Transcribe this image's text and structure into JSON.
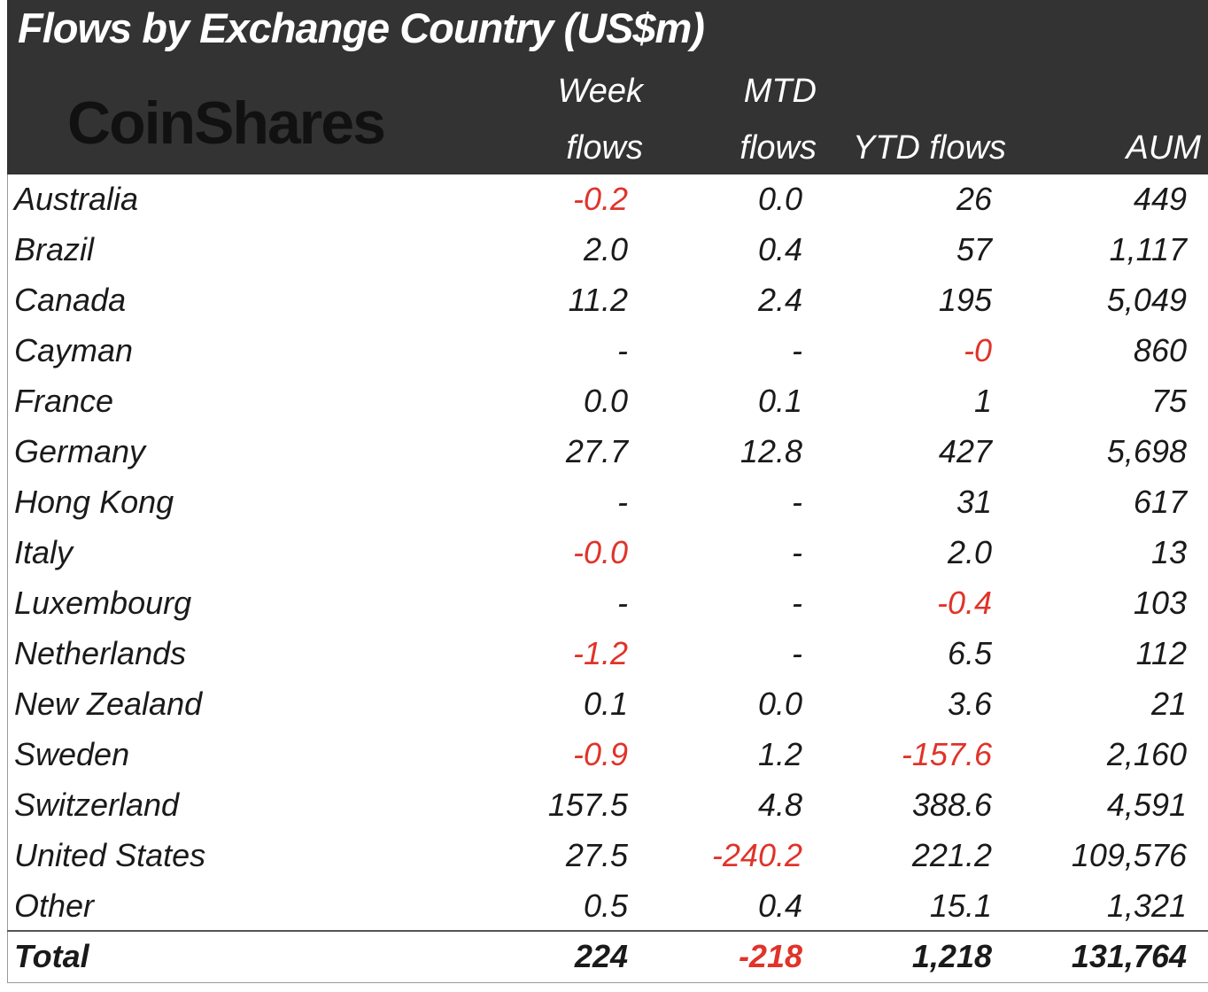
{
  "title": "Flows by Exchange Country (US$m)",
  "logo": "CoinShares",
  "colors": {
    "header_bg": "#333333",
    "negative": "#e0332a"
  },
  "chart_data": {
    "type": "table",
    "title": "Flows by Exchange Country (US$m)",
    "columns": [
      {
        "line1": "Week",
        "line2": "flows"
      },
      {
        "line1": "MTD",
        "line2": "flows"
      },
      {
        "line1": "",
        "line2": "YTD flows"
      },
      {
        "line1": "",
        "line2": "AUM"
      }
    ],
    "rows": [
      {
        "name": "Australia",
        "values": [
          "-0.2",
          "0.0",
          "26",
          "449"
        ]
      },
      {
        "name": "Brazil",
        "values": [
          "2.0",
          "0.4",
          "57",
          "1,117"
        ]
      },
      {
        "name": "Canada",
        "values": [
          "11.2",
          "2.4",
          "195",
          "5,049"
        ]
      },
      {
        "name": "Cayman",
        "values": [
          "-",
          "-",
          "-0",
          "860"
        ]
      },
      {
        "name": "France",
        "values": [
          "0.0",
          "0.1",
          "1",
          "75"
        ]
      },
      {
        "name": "Germany",
        "values": [
          "27.7",
          "12.8",
          "427",
          "5,698"
        ]
      },
      {
        "name": "Hong Kong",
        "values": [
          "-",
          "-",
          "31",
          "617"
        ]
      },
      {
        "name": "Italy",
        "values": [
          "-0.0",
          "-",
          "2.0",
          "13"
        ]
      },
      {
        "name": "Luxembourg",
        "values": [
          "-",
          "-",
          "-0.4",
          "103"
        ]
      },
      {
        "name": "Netherlands",
        "values": [
          "-1.2",
          "-",
          "6.5",
          "112"
        ]
      },
      {
        "name": "New Zealand",
        "values": [
          "0.1",
          "0.0",
          "3.6",
          "21"
        ]
      },
      {
        "name": "Sweden",
        "values": [
          "-0.9",
          "1.2",
          "-157.6",
          "2,160"
        ]
      },
      {
        "name": "Switzerland",
        "values": [
          "157.5",
          "4.8",
          "388.6",
          "4,591"
        ]
      },
      {
        "name": "United States",
        "values": [
          "27.5",
          "-240.2",
          "221.2",
          "109,576"
        ]
      },
      {
        "name": "Other",
        "values": [
          "0.5",
          "0.4",
          "15.1",
          "1,321"
        ]
      }
    ],
    "total": {
      "name": "Total",
      "values": [
        "224",
        "-218",
        "1,218",
        "131,764"
      ]
    }
  }
}
